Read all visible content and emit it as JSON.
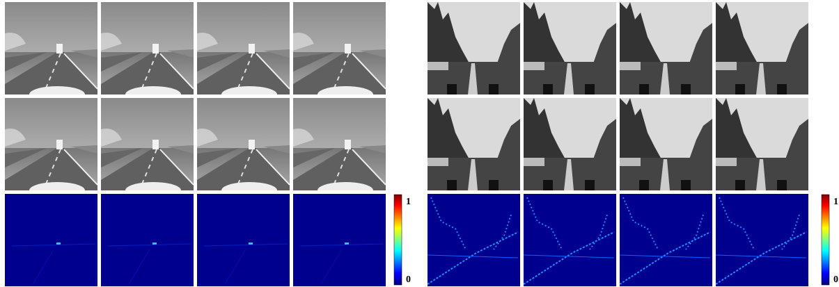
{
  "panels": [
    {
      "colorbar": {
        "max_label": "1",
        "min_label": "0"
      }
    },
    {
      "colorbar": {
        "max_label": "1",
        "min_label": "0"
      }
    }
  ]
}
